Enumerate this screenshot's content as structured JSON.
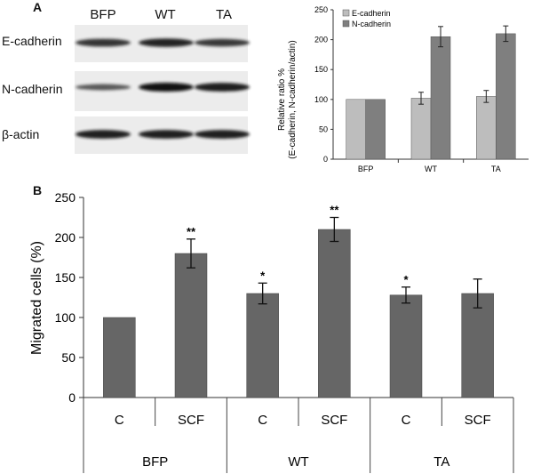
{
  "panel_a": {
    "letter": "A",
    "blot": {
      "lanes": [
        "BFP",
        "WT",
        "TA"
      ],
      "rows": [
        {
          "label": "E-cadherin",
          "bands": [
            0.75,
            0.85,
            0.7
          ]
        },
        {
          "label": "N-cadherin",
          "bands": [
            0.45,
            0.95,
            0.9
          ]
        },
        {
          "label": "β-actin",
          "bands": [
            0.9,
            0.9,
            0.9
          ]
        }
      ]
    }
  },
  "panel_b": {
    "letter": "B"
  },
  "chart_data": [
    {
      "type": "bar",
      "categories": [
        "BFP",
        "WT",
        "TA"
      ],
      "series": [
        {
          "name": "E-cadherin",
          "values": [
            100,
            102,
            105
          ],
          "errors": [
            0,
            10,
            10
          ],
          "color": "#bdbdbd"
        },
        {
          "name": "N-cadherin",
          "values": [
            100,
            205,
            210
          ],
          "errors": [
            0,
            17,
            13
          ],
          "color": "#7f7f7f"
        }
      ],
      "ylabel": "Relative ratio %\n(E-cadherin, N-cadherin/actin)",
      "ylim": [
        0,
        250
      ],
      "yticks": [
        0,
        50,
        100,
        150,
        200,
        250
      ],
      "legend": "top-left"
    },
    {
      "type": "bar",
      "categories": [
        "C",
        "SCF",
        "C",
        "SCF",
        "C",
        "SCF"
      ],
      "groups": [
        "BFP",
        "WT",
        "TA"
      ],
      "values": [
        100,
        180,
        130,
        210,
        128,
        130
      ],
      "errors": [
        0,
        18,
        13,
        15,
        10,
        18
      ],
      "significance": [
        "",
        "**",
        "*",
        "**",
        "*",
        ""
      ],
      "ylabel": "Migrated cells (%)",
      "ylim": [
        0,
        250
      ],
      "yticks": [
        0,
        50,
        100,
        150,
        200,
        250
      ],
      "bar_color": "#666666"
    }
  ]
}
